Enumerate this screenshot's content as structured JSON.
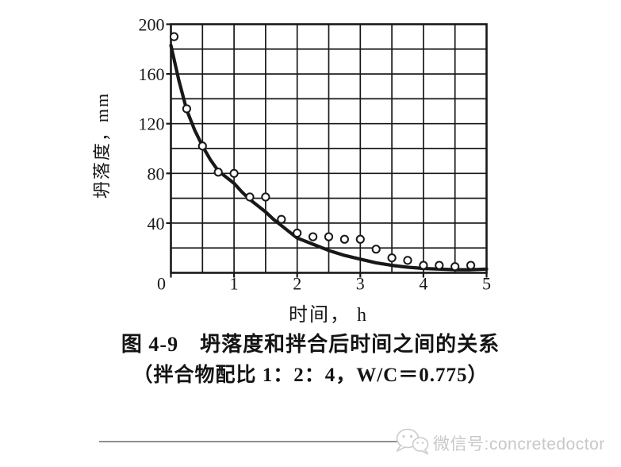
{
  "page": {
    "background": "#ffffff",
    "ink": "#181818"
  },
  "chart_data": {
    "type": "scatter",
    "title": "",
    "xlabel": "时间， h",
    "ylabel": "坍落度，mm",
    "xlim": [
      0,
      5
    ],
    "ylim": [
      0,
      200
    ],
    "x_ticks": [
      0,
      1,
      2,
      3,
      4,
      5
    ],
    "y_ticks": [
      0,
      40,
      80,
      120,
      160,
      200
    ],
    "x_minor_step": 0.5,
    "y_minor_step": 20,
    "grid": true,
    "legend": "none",
    "series": [
      {
        "name": "fitted-slump-curve",
        "style": "solid-line",
        "points": [
          [
            0,
            183
          ],
          [
            0.125,
            155
          ],
          [
            0.25,
            131
          ],
          [
            0.375,
            115
          ],
          [
            0.5,
            102
          ],
          [
            0.625,
            91
          ],
          [
            0.75,
            82
          ],
          [
            0.875,
            77
          ],
          [
            1.0,
            72
          ],
          [
            1.125,
            65
          ],
          [
            1.25,
            59
          ],
          [
            1.375,
            54
          ],
          [
            1.5,
            49
          ],
          [
            1.625,
            43
          ],
          [
            1.75,
            38
          ],
          [
            1.875,
            33
          ],
          [
            2.0,
            28
          ],
          [
            2.25,
            23
          ],
          [
            2.5,
            18
          ],
          [
            2.75,
            14
          ],
          [
            3.0,
            11
          ],
          [
            3.25,
            8
          ],
          [
            3.5,
            6
          ],
          [
            3.75,
            4.5
          ],
          [
            4.0,
            3.5
          ],
          [
            4.25,
            3
          ],
          [
            4.5,
            2.5
          ],
          [
            4.75,
            2.5
          ],
          [
            5.0,
            3
          ]
        ]
      },
      {
        "name": "measured-slump-points",
        "style": "open-circle",
        "points": [
          [
            0.05,
            190
          ],
          [
            0.25,
            132
          ],
          [
            0.5,
            102
          ],
          [
            0.75,
            81
          ],
          [
            1.0,
            80
          ],
          [
            1.25,
            61
          ],
          [
            1.5,
            61
          ],
          [
            1.75,
            43
          ],
          [
            2.0,
            32
          ],
          [
            2.25,
            29
          ],
          [
            2.5,
            29
          ],
          [
            2.75,
            27
          ],
          [
            3.0,
            27
          ],
          [
            3.25,
            19
          ],
          [
            3.5,
            12
          ],
          [
            3.75,
            10
          ],
          [
            4.0,
            6
          ],
          [
            4.25,
            6
          ],
          [
            4.5,
            5
          ],
          [
            4.75,
            6
          ]
        ]
      }
    ]
  },
  "caption": {
    "title": "图 4-9　坍落度和拌合后时间之间的关系",
    "subtitle": "（拌合物配比 1：2：4，W/C＝0.775）"
  },
  "footer": {
    "watermark": "微信号:concretedoctor",
    "watermark_color": "#c8c8c8",
    "rule_color": "#8f8f8f",
    "icon": "wechat-logo"
  }
}
